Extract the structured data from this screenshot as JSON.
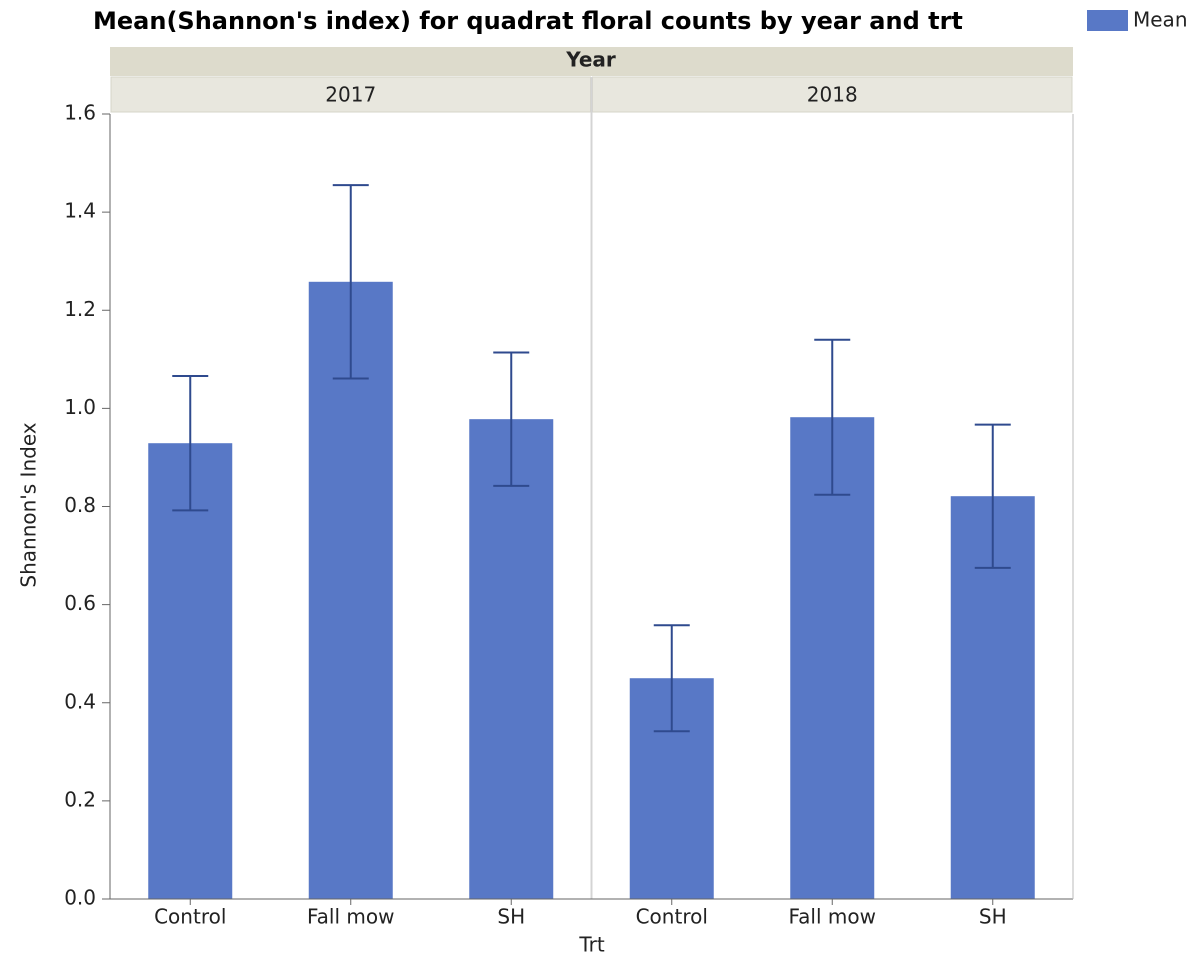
{
  "chart_data": {
    "type": "bar",
    "title": "Mean(Shannon's index) for quadrat floral counts by year and trt",
    "facet_title": "Year",
    "x_label": "Trt",
    "y_label": "Shannon's Index",
    "series_name": "Mean",
    "color": "#5878c6",
    "error_color": "#2f4a8e",
    "ylim": [
      0,
      1.6
    ],
    "yticks": [
      {
        "value": 0,
        "label": "0.0"
      },
      0.2,
      0.4,
      0.6,
      0.8,
      {
        "value": 1,
        "label": "1.0"
      },
      1.2,
      1.4,
      1.6
    ],
    "facets": [
      {
        "label": "2017",
        "categories": [
          "Control",
          "Fall mow",
          "SH"
        ],
        "values": [
          0.929,
          1.258,
          0.978
        ],
        "errors": [
          0.137,
          0.197,
          0.136
        ]
      },
      {
        "label": "2018",
        "categories": [
          "Control",
          "Fall mow",
          "SH"
        ],
        "values": [
          0.45,
          0.982,
          0.821
        ],
        "errors": [
          0.108,
          0.158,
          0.146
        ]
      }
    ]
  }
}
